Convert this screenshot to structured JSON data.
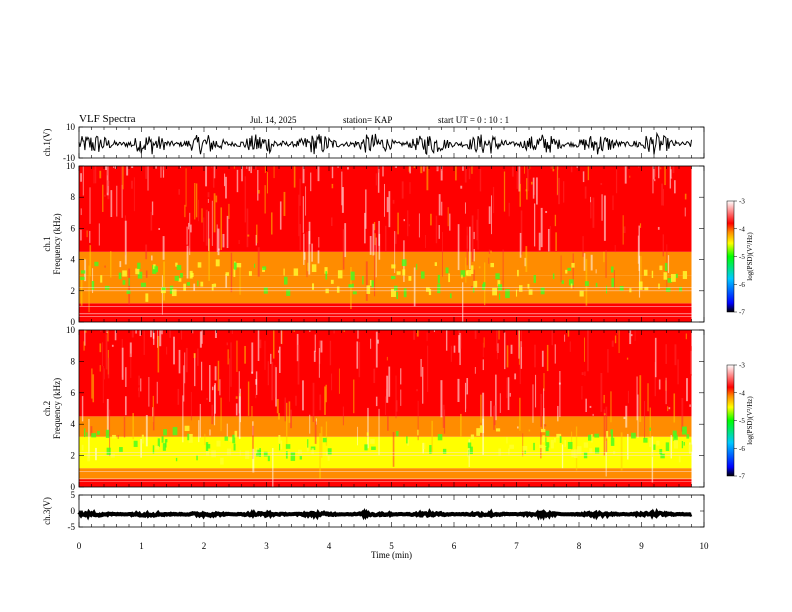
{
  "header": {
    "title": "VLF Spectra",
    "date": "Jul. 14, 2025",
    "station": "station= KAP",
    "start": "start  UT =   0 : 10 : 1"
  },
  "chart_data": [
    {
      "type": "line",
      "name": "ch1-waveform",
      "ylabel": "ch.1(V)",
      "ylim": [
        -10,
        10
      ],
      "y_ticks": [
        "10",
        "-10"
      ],
      "xlim": [
        0,
        10
      ],
      "data_extent": [
        0,
        9.8
      ],
      "typical_band": [
        -8,
        6
      ]
    },
    {
      "type": "heatmap",
      "name": "ch1-spectrogram",
      "ylabel": "ch.1 Frequency (kHz)",
      "ylim": [
        0,
        10
      ],
      "y_ticks": [
        "0",
        "2",
        "4",
        "6",
        "8",
        "10"
      ],
      "xlim": [
        0,
        10
      ],
      "data_extent": [
        0,
        9.8
      ],
      "colorbar": {
        "label": "log(PSD)(V²/Hz)",
        "range": [
          -7,
          -3
        ],
        "ticks": [
          "-3",
          "-4",
          "-5",
          "-6",
          "-7"
        ]
      },
      "bands_khz": [
        {
          "range": [
            0,
            0.5
          ],
          "level": -3.7
        },
        {
          "range": [
            0.5,
            1.2
          ],
          "level": -3.8
        },
        {
          "range": [
            1.2,
            3.0
          ],
          "level": -4.4
        },
        {
          "range": [
            3.0,
            4.5
          ],
          "level": -4.0
        },
        {
          "range": [
            4.5,
            10
          ],
          "level": -3.3
        }
      ]
    },
    {
      "type": "heatmap",
      "name": "ch2-spectrogram",
      "ylabel": "ch.2 Frequency (kHz)",
      "ylim": [
        0,
        10
      ],
      "y_ticks": [
        "0",
        "2",
        "4",
        "6",
        "8",
        "10"
      ],
      "xlim": [
        0,
        10
      ],
      "data_extent": [
        0,
        9.8
      ],
      "colorbar": {
        "label": "log(PSD)(V²/Hz)",
        "range": [
          -7,
          -3
        ],
        "ticks": [
          "-3",
          "-4",
          "-5",
          "-6",
          "-7"
        ]
      },
      "bands_khz": [
        {
          "range": [
            0,
            0.5
          ],
          "level": -3.8
        },
        {
          "range": [
            0.5,
            1.2
          ],
          "level": -3.9
        },
        {
          "range": [
            1.2,
            3.2
          ],
          "level": -4.5
        },
        {
          "range": [
            3.2,
            4.5
          ],
          "level": -4.0
        },
        {
          "range": [
            4.5,
            10
          ],
          "level": -3.3
        }
      ]
    },
    {
      "type": "line",
      "name": "ch3-waveform",
      "ylabel": "ch.3(V)",
      "ylim": [
        -5,
        5
      ],
      "y_ticks": [
        "5",
        "0",
        "-5"
      ],
      "xlim": [
        0,
        10
      ],
      "data_extent": [
        0,
        9.8
      ],
      "typical_band": [
        -1.5,
        -0.5
      ],
      "xlabel": "Time (min)",
      "x_ticks": [
        "0",
        "1",
        "2",
        "3",
        "4",
        "5",
        "6",
        "7",
        "8",
        "9",
        "10"
      ]
    }
  ],
  "colors": {
    "axis": "#000000",
    "colormap": [
      "#000000",
      "#0000ff",
      "#00c8ff",
      "#00ff00",
      "#ffff00",
      "#ff8c00",
      "#ff0000",
      "#ffffff"
    ]
  }
}
